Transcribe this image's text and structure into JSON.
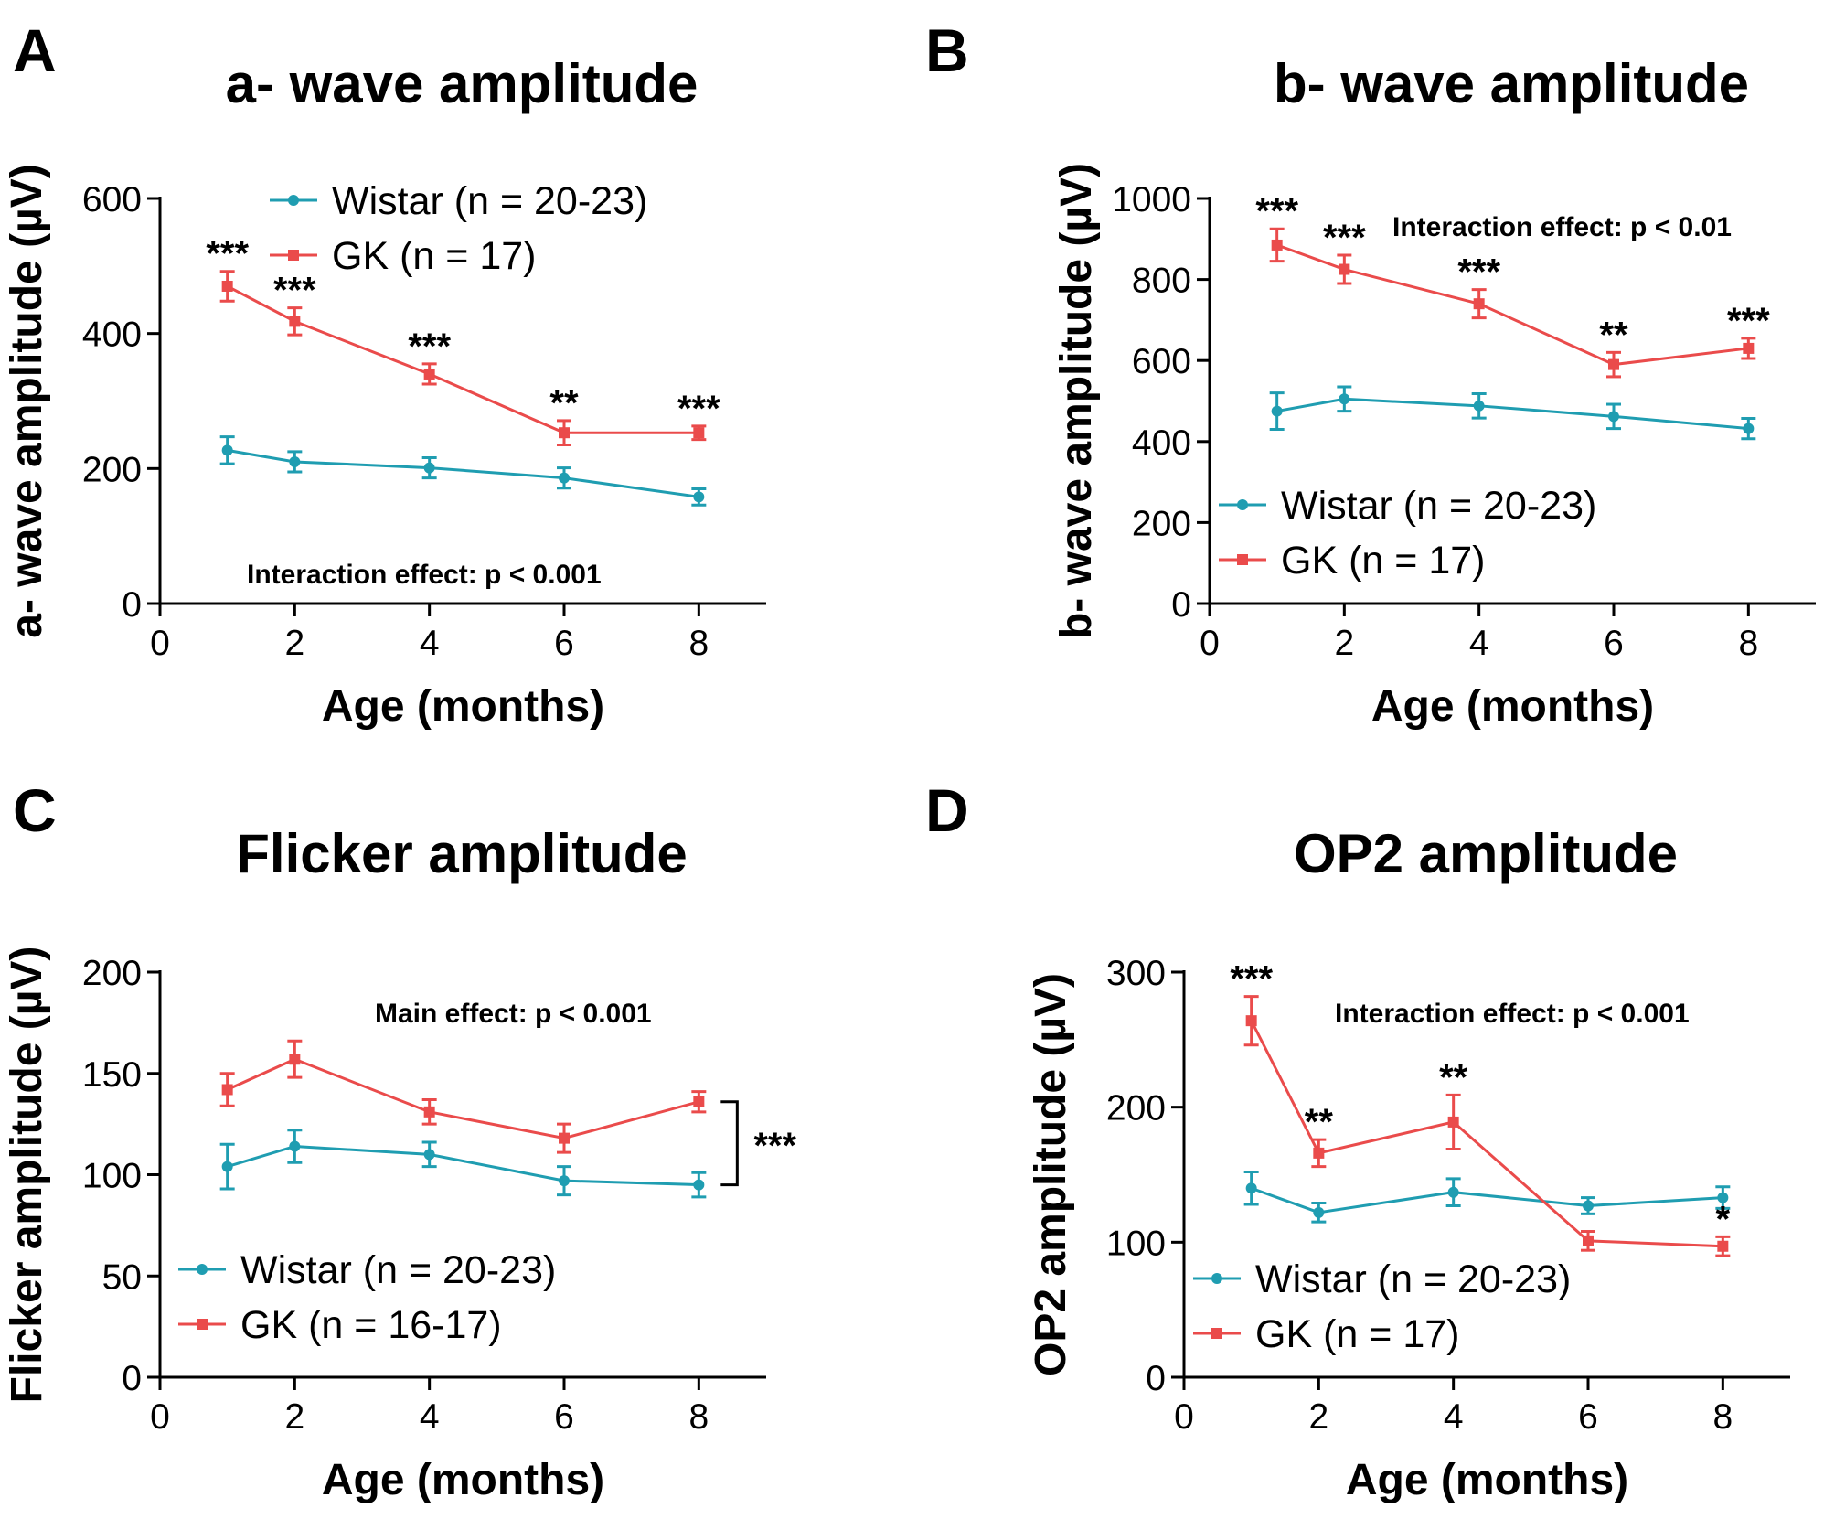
{
  "colors": {
    "wistar": "#1f9db1",
    "gk": "#ea4b4b",
    "axis": "#000000"
  },
  "chart_data": [
    {
      "panel": "A",
      "type": "line",
      "title": "a- wave amplitude",
      "xlabel": "Age (months)",
      "ylabel": "a- wave amplitude (µV)",
      "xlim": [
        0,
        9
      ],
      "ylim": [
        0,
        600
      ],
      "xticks": [
        0,
        2,
        4,
        6,
        8
      ],
      "yticks": [
        0,
        200,
        400,
        600
      ],
      "legend_position": "top-center",
      "effect_text": "Interaction effect: p < 0.001",
      "effect_position": "bottom",
      "series": [
        {
          "name": "Wistar (n = 20-23)",
          "color": "#1f9db1",
          "marker": "circle",
          "x": [
            1,
            2,
            4,
            6,
            8
          ],
          "y": [
            227,
            210,
            201,
            186,
            158
          ],
          "err": [
            20,
            15,
            15,
            15,
            12
          ]
        },
        {
          "name": "GK (n = 17)",
          "color": "#ea4b4b",
          "marker": "square",
          "x": [
            1,
            2,
            4,
            6,
            8
          ],
          "y": [
            470,
            418,
            340,
            253,
            253
          ],
          "err": [
            22,
            20,
            15,
            18,
            10
          ]
        }
      ],
      "significance": [
        {
          "x": 1,
          "label": "***"
        },
        {
          "x": 2,
          "label": "***"
        },
        {
          "x": 4,
          "label": "***"
        },
        {
          "x": 6,
          "label": "**"
        },
        {
          "x": 8,
          "label": "***"
        }
      ]
    },
    {
      "panel": "B",
      "type": "line",
      "title": "b- wave amplitude",
      "xlabel": "Age (months)",
      "ylabel": "b- wave amplitude (µV)",
      "xlim": [
        0,
        9
      ],
      "ylim": [
        0,
        1000
      ],
      "xticks": [
        0,
        2,
        4,
        6,
        8
      ],
      "yticks": [
        0,
        200,
        400,
        600,
        800,
        1000
      ],
      "legend_position": "bottom-left",
      "effect_text": "Interaction effect: p < 0.01",
      "effect_position": "top",
      "series": [
        {
          "name": "Wistar (n = 20-23)",
          "color": "#1f9db1",
          "marker": "circle",
          "x": [
            1,
            2,
            4,
            6,
            8
          ],
          "y": [
            475,
            505,
            488,
            462,
            432
          ],
          "err": [
            45,
            30,
            30,
            30,
            25
          ]
        },
        {
          "name": "GK (n = 17)",
          "color": "#ea4b4b",
          "marker": "square",
          "x": [
            1,
            2,
            4,
            6,
            8
          ],
          "y": [
            885,
            825,
            740,
            590,
            630
          ],
          "err": [
            40,
            35,
            35,
            30,
            25
          ]
        }
      ],
      "significance": [
        {
          "x": 1,
          "label": "***"
        },
        {
          "x": 2,
          "label": "***"
        },
        {
          "x": 4,
          "label": "***"
        },
        {
          "x": 6,
          "label": "**"
        },
        {
          "x": 8,
          "label": "***"
        }
      ]
    },
    {
      "panel": "C",
      "type": "line",
      "title": "Flicker amplitude",
      "xlabel": "Age (months)",
      "ylabel": "Flicker amplitude (µV)",
      "xlim": [
        0,
        9
      ],
      "ylim": [
        0,
        200
      ],
      "xticks": [
        0,
        2,
        4,
        6,
        8
      ],
      "yticks": [
        0,
        50,
        100,
        150,
        200
      ],
      "legend_position": "bottom-center",
      "effect_text": "Main effect: p < 0.001",
      "effect_position": "top",
      "series": [
        {
          "name": "Wistar (n = 20-23)",
          "color": "#1f9db1",
          "marker": "circle",
          "x": [
            1,
            2,
            4,
            6,
            8
          ],
          "y": [
            104,
            114,
            110,
            97,
            95
          ],
          "err": [
            11,
            8,
            6,
            7,
            6
          ]
        },
        {
          "name": "GK (n = 16-17)",
          "color": "#ea4b4b",
          "marker": "square",
          "x": [
            1,
            2,
            4,
            6,
            8
          ],
          "y": [
            142,
            157,
            131,
            118,
            136
          ],
          "err": [
            8,
            9,
            6,
            7,
            5
          ]
        }
      ],
      "bracket": {
        "y_from": 95,
        "y_to": 136,
        "label": "***"
      }
    },
    {
      "panel": "D",
      "type": "line",
      "title": "OP2 amplitude",
      "xlabel": "Age (months)",
      "ylabel": "OP2 amplitude (µV)",
      "xlim": [
        0,
        9
      ],
      "ylim": [
        0,
        300
      ],
      "xticks": [
        0,
        2,
        4,
        6,
        8
      ],
      "yticks": [
        0,
        100,
        200,
        300
      ],
      "legend_position": "bottom-left",
      "effect_text": "Interaction effect: p < 0.001",
      "effect_position": "top",
      "series": [
        {
          "name": "Wistar (n = 20-23)",
          "color": "#1f9db1",
          "marker": "circle",
          "x": [
            1,
            2,
            4,
            6,
            8
          ],
          "y": [
            140,
            122,
            137,
            127,
            133
          ],
          "err": [
            12,
            7,
            10,
            6,
            8
          ]
        },
        {
          "name": "GK (n = 17)",
          "color": "#ea4b4b",
          "marker": "square",
          "x": [
            1,
            2,
            4,
            6,
            8
          ],
          "y": [
            264,
            166,
            189,
            101,
            97
          ],
          "err": [
            18,
            10,
            20,
            7,
            7
          ]
        }
      ],
      "significance": [
        {
          "x": 1,
          "label": "***"
        },
        {
          "x": 2,
          "label": "**"
        },
        {
          "x": 4,
          "label": "**"
        },
        {
          "x": 8,
          "label": "*"
        }
      ]
    }
  ]
}
